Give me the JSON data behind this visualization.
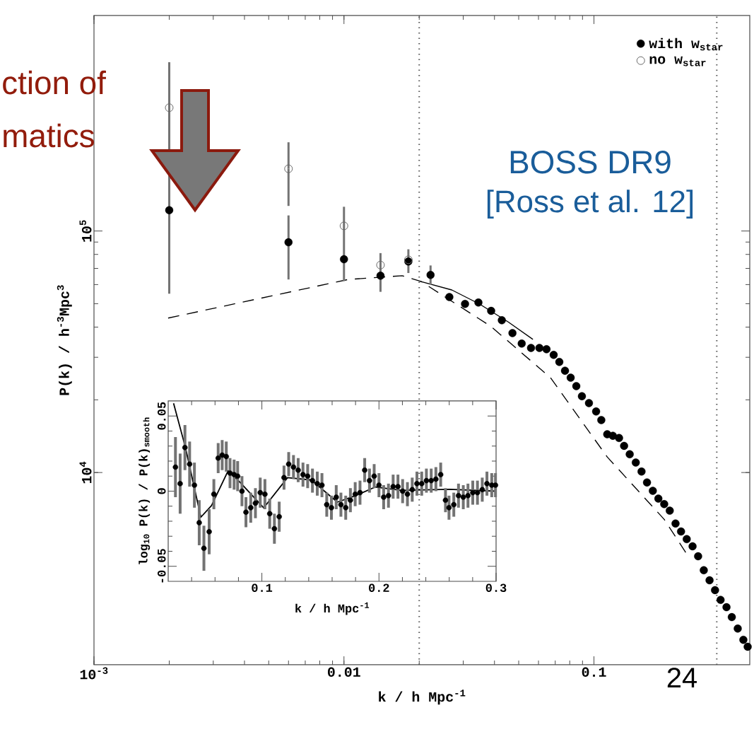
{
  "chart_data": [
    {
      "type": "scatter",
      "xlabel": "k / h Mpc$^{-1}$",
      "ylabel": "P(k) / h$^{-3}$Mpc$^{3}$",
      "log": "xy",
      "xlim": [
        0.001,
        0.42
      ],
      "ylim": [
        1600,
        780000
      ],
      "xticks": [
        {
          "value": 0.001,
          "label": "10$^{-3}$"
        },
        0.01,
        0.1
      ],
      "yticks": [
        {
          "value": 10000,
          "label": "10$^{4}$"
        },
        {
          "value": 100000,
          "label": "10$^{5}$"
        }
      ],
      "legend": "top right",
      "series": [
        {
          "name": "with w$_{star}$",
          "marker": "circle",
          "color": "#000000",
          "x": [
            0.002,
            0.006,
            0.01,
            0.014,
            0.0181,
            0.0222,
            0.0264,
            0.0305,
            0.0345,
            0.0388,
            0.0428,
            0.0472,
            0.0514,
            0.056,
            0.0605,
            0.0646,
            0.069,
            0.0727,
            0.0766,
            0.0807,
            0.085,
            0.0895,
            0.0955,
            0.102,
            0.107,
            0.113,
            0.119,
            0.126,
            0.132,
            0.139,
            0.147,
            0.155,
            0.163,
            0.172,
            0.181,
            0.191,
            0.201,
            0.212,
            0.223,
            0.235,
            0.248,
            0.261,
            0.275,
            0.29,
            0.305,
            0.321,
            0.339,
            0.356,
            0.376,
            0.396,
            0.412
          ],
          "values": [
            122000,
            89800,
            76400,
            65300,
            74800,
            65800,
            53300,
            49900,
            50600,
            46700,
            42700,
            37800,
            34200,
            32800,
            32800,
            32400,
            30700,
            28700,
            26400,
            24700,
            22800,
            20700,
            19400,
            17900,
            16500,
            14400,
            14200,
            13900,
            12900,
            11900,
            11000,
            10100,
            9100,
            8400,
            7800,
            7400,
            6950,
            6150,
            5700,
            5300,
            4950,
            4500,
            3940,
            3580,
            3260,
            2970,
            2770,
            2520,
            2260,
            2030,
            1900
          ],
          "errors": [
            [
              55000,
              500000
            ],
            [
              63000,
              116000
            ],
            [
              62000,
              126000
            ],
            [
              56000,
              81000
            ],
            [
              67000,
              84000
            ],
            [
              60000,
              72000
            ],
            null,
            null,
            null,
            null,
            null,
            null,
            null,
            null,
            null,
            null,
            null,
            null,
            null,
            null,
            null,
            null,
            null,
            null,
            null,
            null,
            null,
            null,
            null,
            null,
            null,
            null,
            null,
            null,
            null,
            null,
            null,
            null,
            null,
            null,
            null,
            null,
            null,
            null,
            null,
            null,
            null,
            null,
            null,
            null,
            null
          ]
        },
        {
          "name": "no w$_{star}$",
          "marker": "circle_open",
          "color": "#666666",
          "x": [
            0.002,
            0.006,
            0.01,
            0.014,
            0.0181
          ],
          "values": [
            324000,
            181000,
            105000,
            72300,
            76000
          ],
          "errors": [
            null,
            [
              127000,
              233000
            ],
            null,
            null,
            null
          ]
        },
        {
          "type": "line",
          "marker": "none",
          "line_style": "solid",
          "color": "#000000",
          "x": [
            0.0202,
            0.027,
            0.0348,
            0.0454,
            0.057
          ],
          "values": [
            61900,
            57000,
            49900,
            42000,
            35600
          ]
        },
        {
          "type": "line",
          "marker": "none",
          "line_style": "dashed",
          "color": "#000000",
          "x": [
            0.00198,
            0.0104,
            0.0171,
            0.0203,
            0.0388,
            0.067,
            0.113,
            0.191,
            0.235
          ],
          "values": [
            43600,
            63000,
            65300,
            61900,
            40200,
            24700,
            11600,
            6400,
            4600
          ]
        }
      ],
      "ref_lines": [
        {
          "axis": "x",
          "value": 0.02,
          "line_style": "dotted",
          "color": "#555555"
        },
        {
          "axis": "x",
          "value": 0.31,
          "line_style": "dotted",
          "color": "#555555"
        }
      ],
      "annotations": [
        "ction of",
        "matics",
        "BOSS DR9",
        "[Ross et al. 12]",
        "24"
      ]
    },
    {
      "type": "scatter",
      "xlabel": "k / h Mpc$^{-1}$",
      "ylabel": "log$_{10}$ P(k) / P(k)$_{smooth}$",
      "xlim": [
        0.02,
        0.3
      ],
      "ylim": [
        -0.06,
        0.06
      ],
      "xticks": [
        0.1,
        0.2,
        0.3
      ],
      "yticks": [
        -0.05,
        0,
        0.05
      ],
      "series": [
        {
          "marker": "circle",
          "color": "#000000",
          "x": [
            0.0262,
            0.0302,
            0.0343,
            0.0383,
            0.0424,
            0.0465,
            0.0505,
            0.055,
            0.059,
            0.0627,
            0.0661,
            0.0696,
            0.0728,
            0.0763,
            0.0793,
            0.083,
            0.0864,
            0.0905,
            0.0945,
            0.0986,
            0.1026,
            0.1067,
            0.1107,
            0.1148,
            0.1189,
            0.1229,
            0.127,
            0.131,
            0.1351,
            0.1391,
            0.1432,
            0.1473,
            0.1513,
            0.1554,
            0.1594,
            0.1635,
            0.1675,
            0.1716,
            0.1756,
            0.1797,
            0.1838,
            0.1878,
            0.1919,
            0.1959,
            0.2,
            0.204,
            0.2081,
            0.2121,
            0.2162,
            0.2202,
            0.2243,
            0.2284,
            0.2324,
            0.2365,
            0.2405,
            0.2446,
            0.2486,
            0.2527,
            0.2568,
            0.2598,
            0.2639,
            0.2679,
            0.272,
            0.276,
            0.2801,
            0.2841,
            0.2882,
            0.2922,
            0.2963,
            0.2995
          ],
          "values": [
            0.016,
            0.005,
            0.029,
            0.018,
            0.004,
            -0.021,
            -0.038,
            -0.027,
            -0.002,
            0.022,
            0.024,
            0.023,
            0.012,
            0.011,
            0.01,
            0.0,
            -0.014,
            -0.011,
            -0.008,
            -0.001,
            -0.002,
            -0.015,
            -0.025,
            -0.017,
            0.009,
            0.018,
            0.016,
            0.014,
            0.011,
            0.01,
            0.007,
            0.005,
            0.004,
            -0.009,
            -0.011,
            -0.004,
            -0.009,
            -0.011,
            -0.006,
            -0.002,
            -0.001,
            0.014,
            0.007,
            0.01,
            0.004,
            -0.004,
            -0.003,
            0.003,
            0.003,
            0.0,
            -0.002,
            0.001,
            0.005,
            0.005,
            0.007,
            0.007,
            0.008,
            0.011,
            -0.006,
            -0.011,
            -0.009,
            -0.003,
            -0.004,
            -0.003,
            -0.001,
            -0.001,
            0.001,
            0.005,
            0.004,
            0.004
          ],
          "errors": [
            0.02,
            0.02,
            0.015,
            0.015,
            0.015,
            0.015,
            0.015,
            0.015,
            0.01,
            0.01,
            0.01,
            0.01,
            0.01,
            0.01,
            0.01,
            0.01,
            0.01,
            0.01,
            0.01,
            0.01,
            0.01,
            0.01,
            0.01,
            0.01,
            0.008,
            0.008,
            0.008,
            0.008,
            0.008,
            0.008,
            0.008,
            0.008,
            0.008,
            0.008,
            0.008,
            0.008,
            0.008,
            0.008,
            0.008,
            0.008,
            0.008,
            0.008,
            0.008,
            0.008,
            0.008,
            0.008,
            0.008,
            0.008,
            0.008,
            0.008,
            0.008,
            0.008,
            0.008,
            0.008,
            0.008,
            0.008,
            0.008,
            0.008,
            0.008,
            0.008,
            0.008,
            0.008,
            0.008,
            0.008,
            0.008,
            0.008,
            0.008,
            0.008,
            0.008,
            0.008
          ]
        },
        {
          "type": "line",
          "marker": "none",
          "line_style": "solid",
          "color": "#000000",
          "x": [
            0.0246,
            0.0347,
            0.0479,
            0.057,
            0.0712,
            0.0813,
            0.1016,
            0.1219,
            0.1422,
            0.1645,
            0.1787,
            0.197,
            0.2192,
            0.26,
            0.3
          ],
          "values": [
            0.0585,
            0.0291,
            -0.0173,
            -0.0096,
            0.0136,
            0.0059,
            -0.0111,
            0.009,
            0.0074,
            -0.0073,
            -0.0034,
            0.0028,
            0.0005,
            0.0012,
            0.0
          ]
        }
      ]
    }
  ]
}
